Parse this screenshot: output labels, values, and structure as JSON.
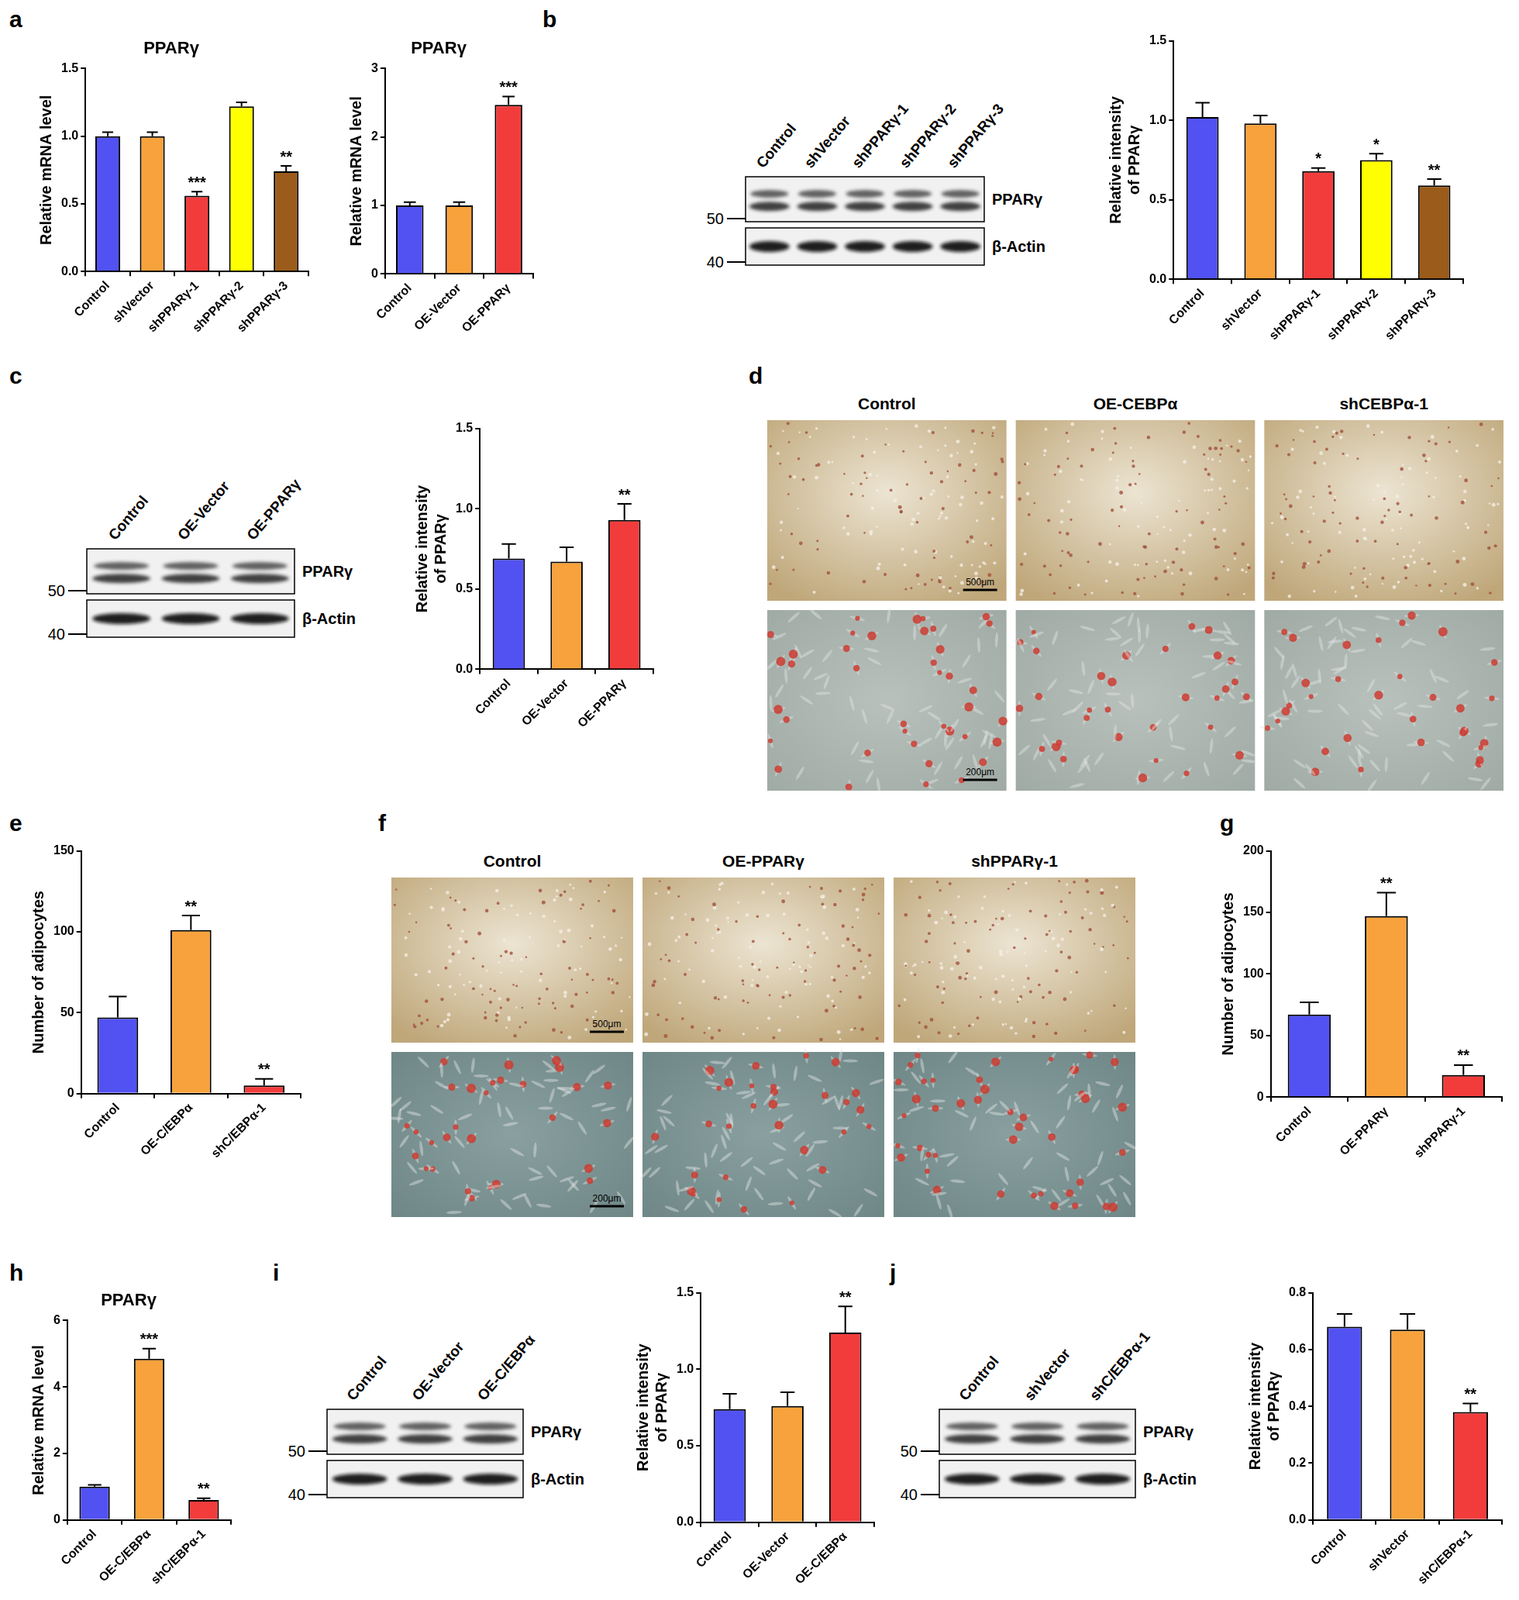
{
  "panel_labels": [
    "a",
    "b",
    "c",
    "d",
    "e",
    "f",
    "g",
    "h",
    "i",
    "j"
  ],
  "chart_data": [
    {
      "type": "bar",
      "title": "PPARγ",
      "y_label": "Relative mRNA level",
      "categories": [
        "Control",
        "shVector",
        "shPPARγ-1",
        "shPPARγ-2",
        "shPPARγ-3"
      ],
      "values": [
        1.0,
        1.0,
        0.56,
        1.22,
        0.74
      ],
      "errors": [
        0.03,
        0.03,
        0.03,
        0.03,
        0.04
      ],
      "significance": [
        null,
        null,
        "***",
        null,
        "**"
      ],
      "colors": [
        "#5252f2",
        "#f7a23c",
        "#f23c3c",
        "#ffff00",
        "#9b5b1a"
      ],
      "ylim": [
        0,
        1.5
      ],
      "yticks": [
        {
          "value": 0,
          "label": "0.0"
        },
        0.5,
        {
          "value": 1,
          "label": "1.0"
        },
        1.5
      ]
    },
    {
      "type": "bar",
      "title": "PPARγ",
      "y_label": "Relative mRNA level",
      "categories": [
        "Control",
        "OE-Vector",
        "OE-PPARγ"
      ],
      "values": [
        1.0,
        1.0,
        2.47
      ],
      "errors": [
        0.05,
        0.05,
        0.12
      ],
      "significance": [
        null,
        null,
        "***"
      ],
      "colors": [
        "#5252f2",
        "#f7a23c",
        "#f23c3c"
      ],
      "ylim": [
        0,
        3
      ],
      "yticks": [
        0,
        1,
        2,
        3
      ]
    },
    {
      "type": "bar",
      "y_label": "Relative intensity\nof PPARγ",
      "categories": [
        "Control",
        "shVector",
        "shPPARγ-1",
        "shPPARγ-2",
        "shPPARγ-3"
      ],
      "values": [
        1.02,
        0.98,
        0.68,
        0.75,
        0.59
      ],
      "errors": [
        0.09,
        0.05,
        0.02,
        0.04,
        0.04
      ],
      "significance": [
        null,
        null,
        "*",
        "*",
        "**"
      ],
      "colors": [
        "#5252f2",
        "#f7a23c",
        "#f23c3c",
        "#ffff00",
        "#9b5b1a"
      ],
      "ylim": [
        0,
        1.5
      ],
      "yticks": [
        {
          "value": 0,
          "label": "0.0"
        },
        0.5,
        {
          "value": 1,
          "label": "1.0"
        },
        1.5
      ]
    },
    {
      "type": "bar",
      "y_label": "Relative intensity\nof PPARγ",
      "categories": [
        "Control",
        "OE-Vector",
        "OE-PPARγ"
      ],
      "values": [
        0.69,
        0.67,
        0.93
      ],
      "errors": [
        0.09,
        0.09,
        0.1
      ],
      "significance": [
        null,
        null,
        "**"
      ],
      "colors": [
        "#5252f2",
        "#f7a23c",
        "#f23c3c"
      ],
      "ylim": [
        0,
        1.5
      ],
      "yticks": [
        {
          "value": 0,
          "label": "0.0"
        },
        0.5,
        {
          "value": 1,
          "label": "1.0"
        },
        1.5
      ]
    },
    {
      "type": "bar",
      "y_label": "Number of adipocytes",
      "categories": [
        "Control",
        "OE-C/EBPα",
        "shC/EBPα-1"
      ],
      "values": [
        47,
        101,
        5
      ],
      "errors": [
        13,
        9,
        4
      ],
      "significance": [
        null,
        "**",
        "**"
      ],
      "colors": [
        "#5252f2",
        "#f7a23c",
        "#f23c3c"
      ],
      "ylim": [
        0,
        150
      ],
      "yticks": [
        0,
        50,
        100,
        150
      ]
    },
    {
      "type": "bar",
      "y_label": "Number of adipocytes",
      "categories": [
        "Control",
        "OE-PPARγ",
        "shPPARγ-1"
      ],
      "values": [
        67,
        147,
        18
      ],
      "errors": [
        10,
        19,
        8
      ],
      "significance": [
        null,
        "**",
        "**"
      ],
      "colors": [
        "#5252f2",
        "#f7a23c",
        "#f23c3c"
      ],
      "ylim": [
        0,
        200
      ],
      "yticks": [
        0,
        50,
        100,
        150,
        200
      ]
    },
    {
      "type": "bar",
      "title": "PPARγ",
      "y_label": "Relative mRNA level",
      "categories": [
        "Control",
        "OE-C/EBPα",
        "shC/EBPα-1"
      ],
      "values": [
        1.0,
        4.85,
        0.6
      ],
      "errors": [
        0.05,
        0.3,
        0.05
      ],
      "significance": [
        null,
        "***",
        "**"
      ],
      "colors": [
        "#5252f2",
        "#f7a23c",
        "#f23c3c"
      ],
      "ylim": [
        0,
        6
      ],
      "yticks": [
        0,
        2,
        4,
        6
      ]
    },
    {
      "type": "bar",
      "y_label": "Relative intensity\nof PPARγ",
      "categories": [
        "Control",
        "OE-Vector",
        "OE-C/EBPα"
      ],
      "values": [
        0.74,
        0.76,
        1.24
      ],
      "errors": [
        0.1,
        0.09,
        0.17
      ],
      "significance": [
        null,
        null,
        "**"
      ],
      "colors": [
        "#5252f2",
        "#f7a23c",
        "#f23c3c"
      ],
      "ylim": [
        0,
        1.5
      ],
      "yticks": [
        {
          "value": 0,
          "label": "0.0"
        },
        0.5,
        {
          "value": 1,
          "label": "1.0"
        },
        1.5
      ]
    },
    {
      "type": "bar",
      "y_label": "Relative intensity\nof PPARγ",
      "categories": [
        "Control",
        "shVector",
        "shC/EBPα-1"
      ],
      "values": [
        0.68,
        0.67,
        0.38
      ],
      "errors": [
        0.045,
        0.055,
        0.03
      ],
      "significance": [
        null,
        null,
        "**"
      ],
      "colors": [
        "#5252f2",
        "#f7a23c",
        "#f23c3c"
      ],
      "ylim": [
        0,
        0.8
      ],
      "yticks": [
        {
          "value": 0,
          "label": "0.0"
        },
        0.2,
        0.4,
        0.6,
        0.8
      ]
    }
  ],
  "blots": [
    {
      "lanes": [
        "Control",
        "shVector",
        "shPPARγ-1",
        "shPPARγ-2",
        "shPPARγ-3"
      ],
      "rows": [
        "PPARγ",
        "β-Actin"
      ],
      "markers": [
        {
          "text": "50",
          "row": "PPARγ"
        },
        {
          "text": "40",
          "row": "β-Actin"
        }
      ]
    },
    {
      "lanes": [
        "Control",
        "OE-Vector",
        "OE-PPARγ"
      ],
      "rows": [
        "PPARγ",
        "β-Actin"
      ],
      "markers": [
        {
          "text": "50",
          "row": "PPARγ"
        },
        {
          "text": "40",
          "row": "β-Actin"
        }
      ]
    },
    {
      "lanes": [
        "Control",
        "OE-Vector",
        "OE-C/EBPα"
      ],
      "rows": [
        "PPARγ",
        "β-Actin"
      ],
      "markers": [
        {
          "text": "50",
          "row": "PPARγ"
        },
        {
          "text": "40",
          "row": "β-Actin"
        }
      ]
    },
    {
      "lanes": [
        "Control",
        "shVector",
        "shC/EBPα-1"
      ],
      "rows": [
        "PPARγ",
        "β-Actin"
      ],
      "markers": [
        {
          "text": "50",
          "row": "PPARγ"
        },
        {
          "text": "40",
          "row": "β-Actin"
        }
      ]
    }
  ],
  "images": [
    {
      "columns": [
        "Control",
        "OE-CEBPα",
        "shCEBPα-1"
      ],
      "scale_bars": [
        "500μm",
        "200μm"
      ]
    },
    {
      "columns": [
        "Control",
        "OE-PPARγ",
        "shPPARγ-1"
      ],
      "scale_bars": [
        "500μm",
        "200μm"
      ]
    }
  ]
}
